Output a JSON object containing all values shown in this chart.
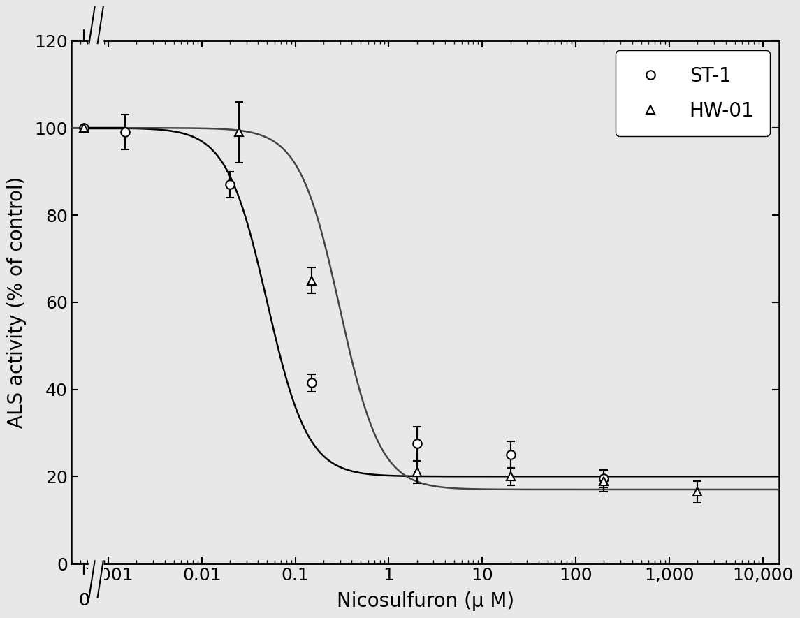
{
  "xlabel": "Nicosulfuron (μ M)",
  "ylabel": "ALS activity (% of control)",
  "ST1_x": [
    0.0015,
    0.02,
    0.15,
    2.0,
    20.0,
    200.0
  ],
  "ST1_y": [
    99.0,
    87.0,
    41.5,
    27.5,
    25.0,
    19.5
  ],
  "ST1_yerr": [
    4.0,
    3.0,
    2.0,
    4.0,
    3.0,
    2.0
  ],
  "HW01_x": [
    0.025,
    0.15,
    2.0,
    20.0,
    200.0,
    2000.0
  ],
  "HW01_y": [
    99.0,
    65.0,
    21.0,
    20.0,
    19.0,
    16.5
  ],
  "HW01_yerr": [
    7.0,
    3.0,
    2.5,
    2.0,
    2.5,
    2.5
  ],
  "zero_y": 100.0,
  "zero_x_pos": 0.00055,
  "control_line_x": [
    0.00055,
    0.0015
  ],
  "control_line_y": [
    100.0,
    100.0
  ],
  "yticks": [
    0,
    20,
    40,
    60,
    80,
    100,
    120
  ],
  "xtick_vals": [
    0.001,
    0.01,
    0.1,
    1,
    10,
    100,
    1000,
    10000
  ],
  "xtick_labels": [
    "0.001",
    "0.01",
    "0.1",
    "1",
    "10",
    "100",
    "1,000",
    "10,000"
  ],
  "xlim": [
    0.0004,
    15000
  ],
  "ylim_main": [
    0,
    120
  ],
  "axis_linewidth": 1.8,
  "marker_size": 9,
  "linewidth": 1.8,
  "font_size": 20,
  "legend_fontsize": 20,
  "tick_fontsize": 18,
  "bg_color": "#e8e8e8"
}
